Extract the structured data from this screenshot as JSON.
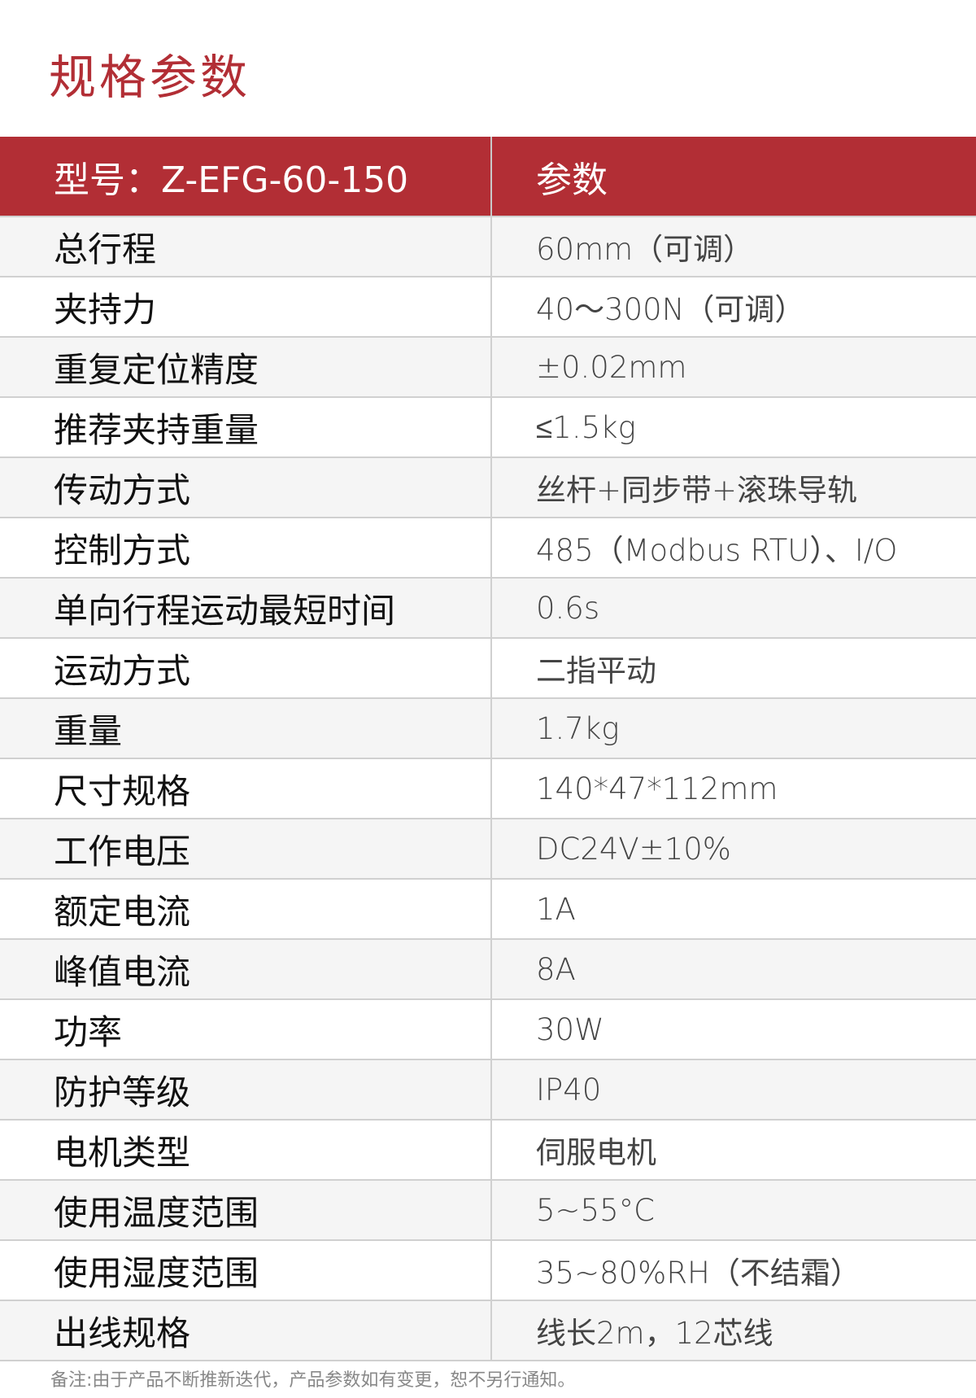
{
  "title": "规格参数",
  "header": {
    "model": "型号：Z-EFG-60-150",
    "param": "参数"
  },
  "rows": [
    {
      "label": "总行程",
      "value": "60mm（可调）"
    },
    {
      "label": "夹持力",
      "value": "40～300N（可调）"
    },
    {
      "label": "重复定位精度",
      "value": "±0.02mm"
    },
    {
      "label": "推荐夹持重量",
      "value": "≤1.5kg"
    },
    {
      "label": "传动方式",
      "value": "丝杆+同步带+滚珠导轨"
    },
    {
      "label": "控制方式",
      "value": "485（Modbus RTU）、I/O"
    },
    {
      "label": "单向行程运动最短时间",
      "value": "0.6s"
    },
    {
      "label": "运动方式",
      "value": "二指平动"
    },
    {
      "label": "重量",
      "value": "1.7kg"
    },
    {
      "label": "尺寸规格",
      "value": "140*47*112mm"
    },
    {
      "label": "工作电压",
      "value": "DC24V±10%"
    },
    {
      "label": "额定电流",
      "value": "1A"
    },
    {
      "label": "峰值电流",
      "value": "8A"
    },
    {
      "label": "功率",
      "value": "30W"
    },
    {
      "label": "防护等级",
      "value": "IP40"
    },
    {
      "label": "电机类型",
      "value": "伺服电机"
    },
    {
      "label": "使用温度范围",
      "value": "5~55°C"
    },
    {
      "label": "使用湿度范围",
      "value": "35~80%RH（不结霜）"
    },
    {
      "label": "出线规格",
      "value": "线长2m，12芯线"
    }
  ],
  "note": "备注:由于产品不断推新迭代，产品参数如有变更，恕不另行通知。",
  "colors": {
    "accent": "#b22e35",
    "row_alt": "#f5f5f5"
  }
}
